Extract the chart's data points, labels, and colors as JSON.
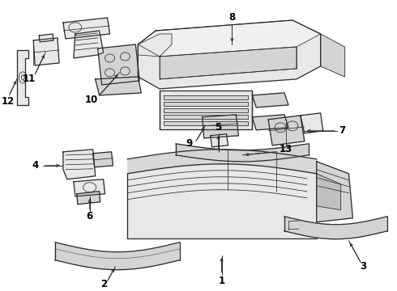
{
  "bg_color": "#ffffff",
  "line_color": "#2a2a2a",
  "fill_light": "#e8e8e8",
  "fill_mid": "#d4d4d4",
  "fill_dark": "#c0c0c0",
  "fig_width": 4.9,
  "fig_height": 3.6,
  "dpi": 100,
  "label_fontsize": 8.5,
  "lw_main": 0.9,
  "lw_detail": 0.55,
  "lw_leader": 0.7
}
